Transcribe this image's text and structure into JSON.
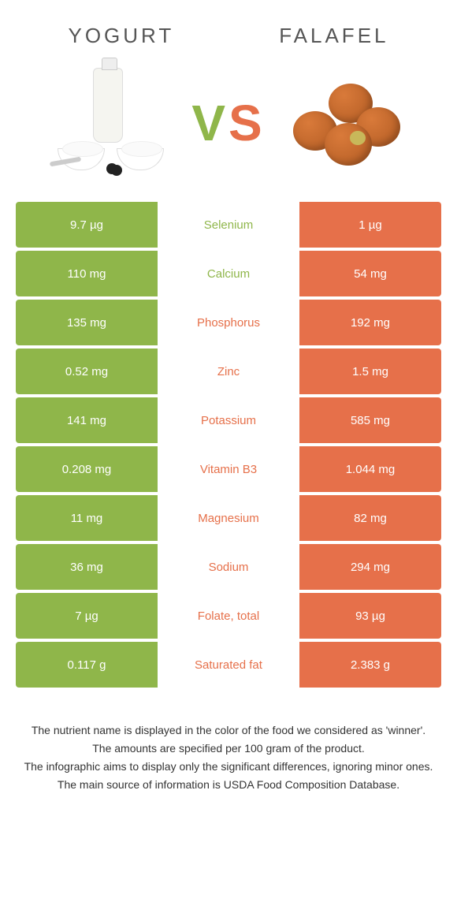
{
  "colors": {
    "food1": "#8fb64a",
    "food2": "#e6704a",
    "row_label_bg": "#ffffff"
  },
  "food1": {
    "name": "Yogurt"
  },
  "food2": {
    "name": "Falafel"
  },
  "vs": {
    "v": "V",
    "s": "S"
  },
  "rows": [
    {
      "label": "Selenium",
      "v1": "9.7 µg",
      "v2": "1 µg",
      "winner": 1
    },
    {
      "label": "Calcium",
      "v1": "110 mg",
      "v2": "54 mg",
      "winner": 1
    },
    {
      "label": "Phosphorus",
      "v1": "135 mg",
      "v2": "192 mg",
      "winner": 2
    },
    {
      "label": "Zinc",
      "v1": "0.52 mg",
      "v2": "1.5 mg",
      "winner": 2
    },
    {
      "label": "Potassium",
      "v1": "141 mg",
      "v2": "585 mg",
      "winner": 2
    },
    {
      "label": "Vitamin B3",
      "v1": "0.208 mg",
      "v2": "1.044 mg",
      "winner": 2
    },
    {
      "label": "Magnesium",
      "v1": "11 mg",
      "v2": "82 mg",
      "winner": 2
    },
    {
      "label": "Sodium",
      "v1": "36 mg",
      "v2": "294 mg",
      "winner": 2
    },
    {
      "label": "Folate, total",
      "v1": "7 µg",
      "v2": "93 µg",
      "winner": 2
    },
    {
      "label": "Saturated fat",
      "v1": "0.117 g",
      "v2": "2.383 g",
      "winner": 2
    }
  ],
  "footer": {
    "l1": "The nutrient name is displayed in the color of the food we considered as 'winner'.",
    "l2": "The amounts are specified per 100 gram of the product.",
    "l3": "The infographic aims to display only the significant differences, ignoring minor ones.",
    "l4": "The main source of information is USDA Food Composition Database."
  }
}
